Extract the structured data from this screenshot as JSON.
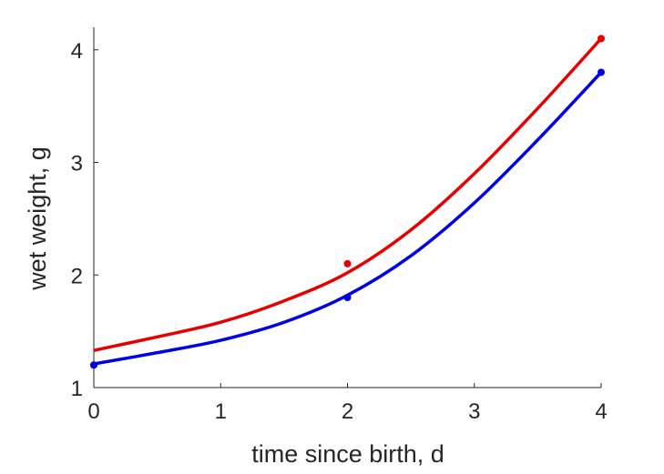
{
  "chart_data": {
    "type": "line",
    "xlabel": "time since birth, d",
    "ylabel": "wet weight, g",
    "xlim": [
      0,
      4
    ],
    "ylim": [
      1,
      4.2
    ],
    "xticks": [
      0,
      1,
      2,
      3,
      4
    ],
    "yticks": [
      1,
      2,
      3,
      4
    ],
    "grid": false,
    "series": [
      {
        "color": "#e60000",
        "points": {
          "x": [
            0,
            2,
            4
          ],
          "y": [
            1.2,
            2.1,
            4.1
          ]
        },
        "curve": {
          "x": [
            0,
            0.5,
            1,
            1.5,
            2,
            2.5,
            3,
            3.5,
            4
          ],
          "y": [
            1.33,
            1.45,
            1.58,
            1.77,
            2.02,
            2.4,
            2.9,
            3.48,
            4.1
          ]
        }
      },
      {
        "color": "#0000e6",
        "points": {
          "x": [
            0,
            2,
            4
          ],
          "y": [
            1.2,
            1.8,
            3.8
          ]
        },
        "curve": {
          "x": [
            0,
            0.5,
            1,
            1.5,
            2,
            2.5,
            3,
            3.5,
            4
          ],
          "y": [
            1.21,
            1.31,
            1.42,
            1.58,
            1.82,
            2.17,
            2.64,
            3.2,
            3.8
          ]
        }
      }
    ]
  }
}
